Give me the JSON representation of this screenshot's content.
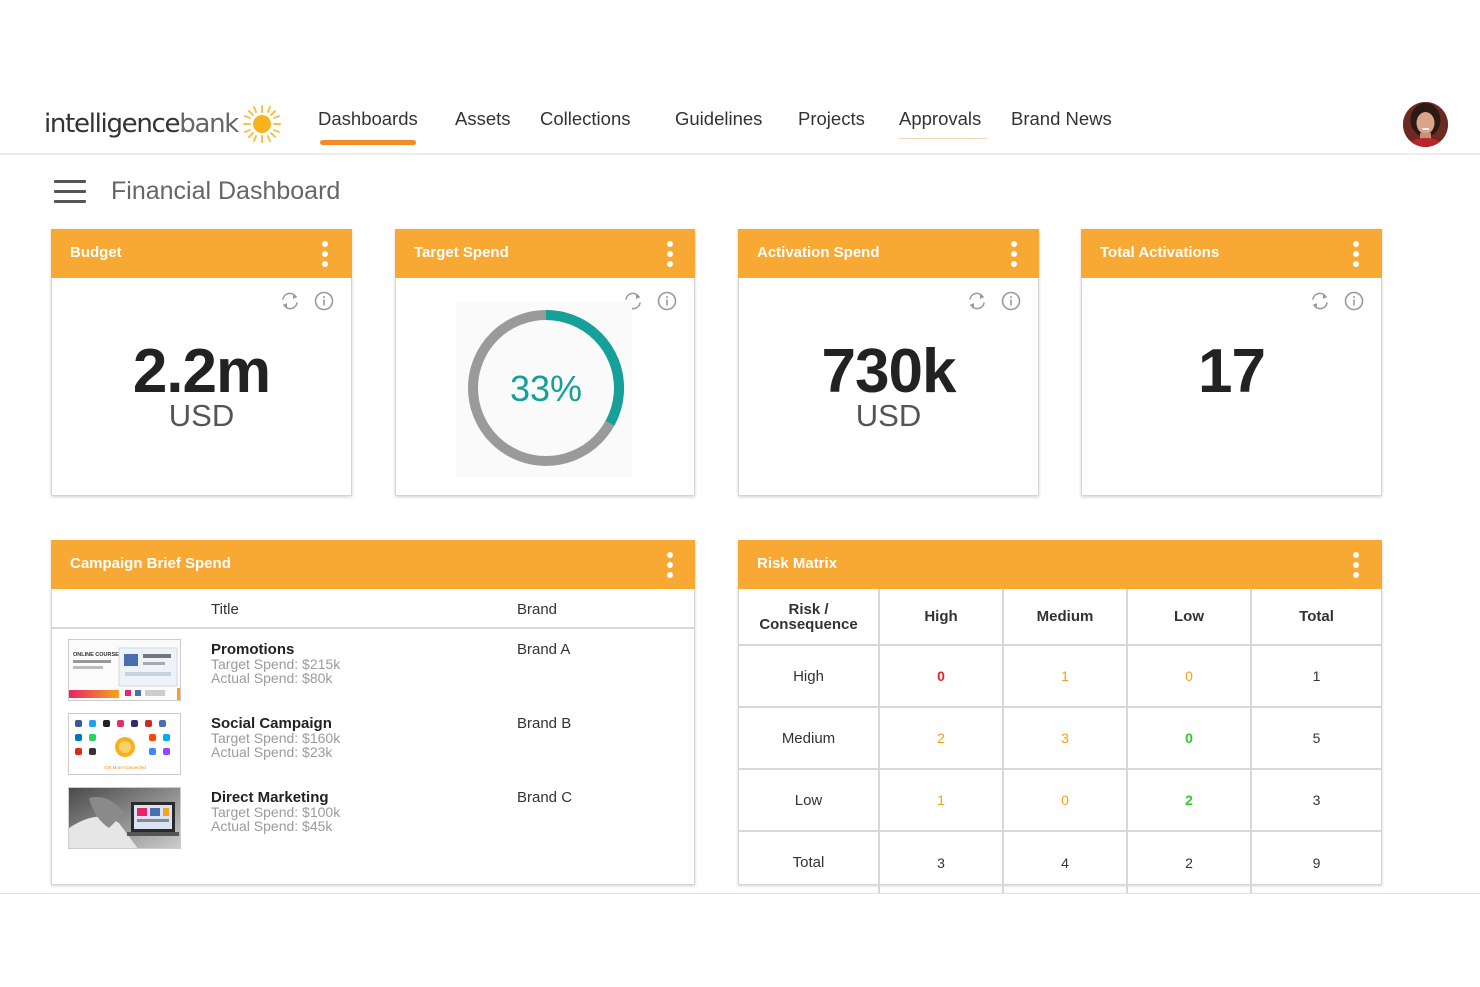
{
  "brand": {
    "logo_word_1": "intelligence",
    "logo_word_2": "bank"
  },
  "nav": {
    "items": [
      {
        "label": "Dashboards",
        "active": true
      },
      {
        "label": "Assets"
      },
      {
        "label": "Collections"
      },
      {
        "label": "Guidelines"
      },
      {
        "label": "Projects"
      },
      {
        "label": "Approvals"
      },
      {
        "label": "Brand News"
      }
    ]
  },
  "page": {
    "title": "Financial Dashboard"
  },
  "cards": {
    "budget": {
      "title": "Budget",
      "value": "2.2m",
      "unit": "USD"
    },
    "target_spend": {
      "title": "Target Spend",
      "percent_label": "33%",
      "percent": 33
    },
    "activation_spend": {
      "title": "Activation Spend",
      "value": "730k",
      "unit": "USD"
    },
    "total_activations": {
      "title": "Total Activations",
      "value": "17"
    }
  },
  "campaign": {
    "title": "Campaign Brief Spend",
    "columns": [
      "Title",
      "Brand"
    ],
    "rows": [
      {
        "title": "Promotions",
        "target": "Target Spend: $215k",
        "actual": "Actual Spend:  $80k",
        "brand": "Brand A"
      },
      {
        "title": "Social Campaign",
        "target": "Target Spend: $160k",
        "actual": "Actual Spend: $23k",
        "brand": "Brand B"
      },
      {
        "title": "Direct Marketing",
        "target": "Target Spend: $100k",
        "actual": "Actual Spend: $45k",
        "brand": "Brand C"
      }
    ],
    "thumb_text": {
      "promo_headline": "ONLINE COURSE JUMP HERE",
      "social_caption": "Get More Connected"
    }
  },
  "risk": {
    "title": "Risk Matrix",
    "headers": [
      "Risk / Consequence",
      "High",
      "Medium",
      "Low",
      "Total"
    ],
    "rows": [
      {
        "label": "High",
        "high": "0",
        "medium": "1",
        "low": "0",
        "total": "1"
      },
      {
        "label": "Medium",
        "high": "2",
        "medium": "3",
        "low": "0",
        "total": "5"
      },
      {
        "label": "Low",
        "high": "1",
        "medium": "0",
        "low": "2",
        "total": "3"
      },
      {
        "label": "Total",
        "high": "3",
        "medium": "4",
        "low": "2",
        "total": "9"
      }
    ]
  },
  "colors": {
    "accent": "#f7a933",
    "nav_underline": "#f28c28",
    "donut_fill": "#15a09a",
    "donut_track": "#9a9a9a",
    "risk_red": "#e8241f",
    "risk_orange": "#f5a019",
    "risk_green": "#2ecc2e"
  },
  "icons": [
    "sun-logo-icon",
    "hamburger-menu-icon",
    "kebab-menu-icon",
    "refresh-icon",
    "info-icon",
    "user-avatar"
  ]
}
